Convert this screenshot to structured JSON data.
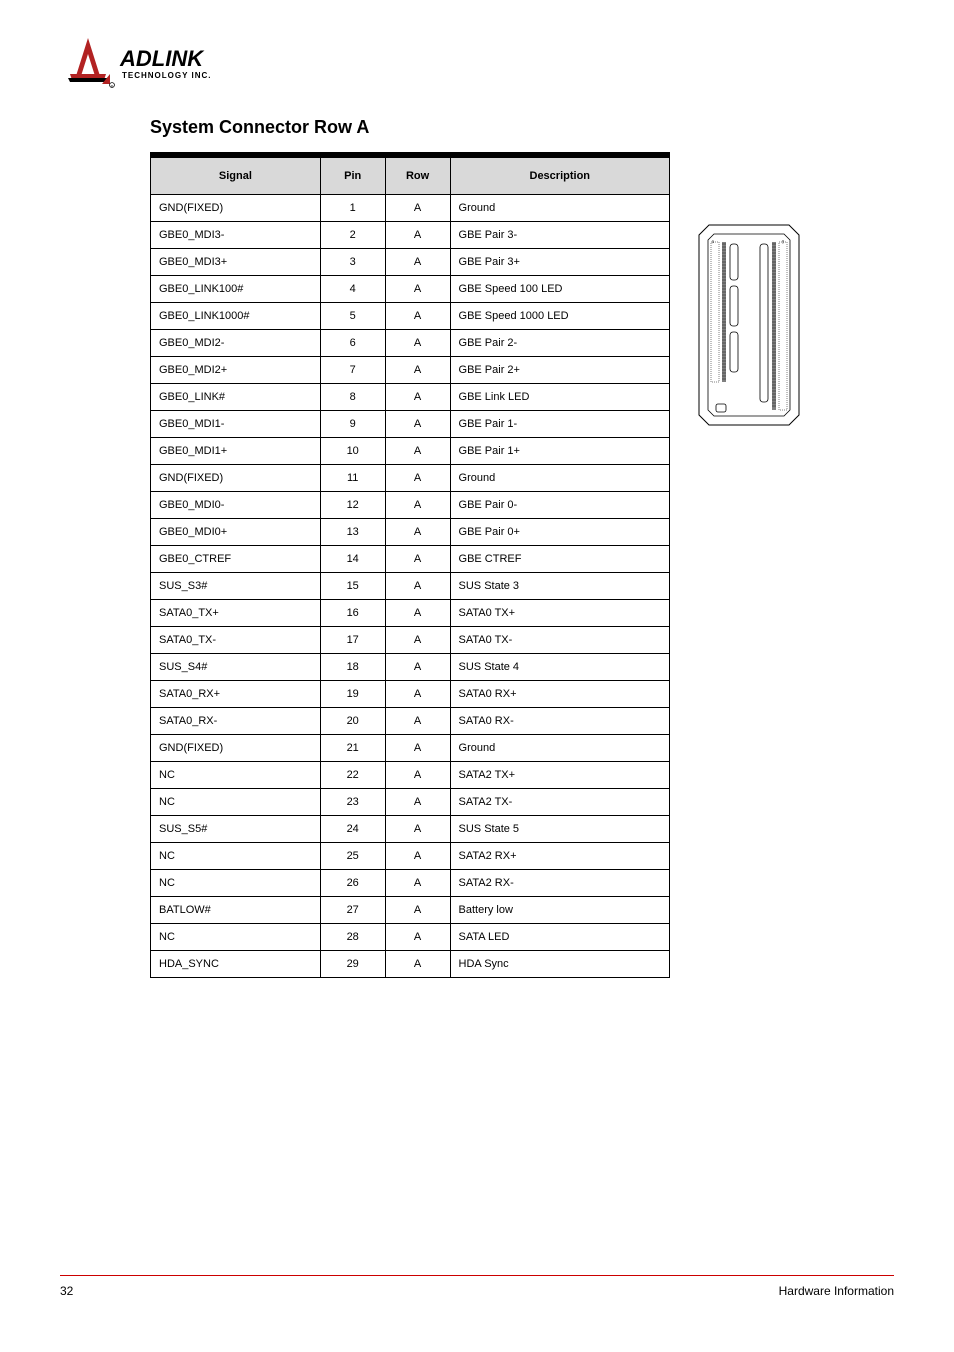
{
  "logo": {
    "brand_name": "ADLINK",
    "tagline": "TECHNOLOGY INC.",
    "primary_color": "#b22222",
    "text_color": "#000000"
  },
  "section": {
    "title": "System Connector Row A"
  },
  "table": {
    "headers": {
      "signal": "Signal",
      "pin": "Pin",
      "row": "Row",
      "description": "Description"
    },
    "rows": [
      {
        "signal": "GND(FIXED)",
        "pin": "1",
        "row": "A",
        "desc": "Ground"
      },
      {
        "signal": "GBE0_MDI3-",
        "pin": "2",
        "row": "A",
        "desc": "GBE Pair 3-"
      },
      {
        "signal": "GBE0_MDI3+",
        "pin": "3",
        "row": "A",
        "desc": "GBE Pair 3+"
      },
      {
        "signal": "GBE0_LINK100#",
        "pin": "4",
        "row": "A",
        "desc": "GBE Speed 100 LED"
      },
      {
        "signal": "GBE0_LINK1000#",
        "pin": "5",
        "row": "A",
        "desc": "GBE Speed 1000 LED"
      },
      {
        "signal": "GBE0_MDI2-",
        "pin": "6",
        "row": "A",
        "desc": "GBE Pair 2-"
      },
      {
        "signal": "GBE0_MDI2+",
        "pin": "7",
        "row": "A",
        "desc": "GBE Pair 2+"
      },
      {
        "signal": "GBE0_LINK#",
        "pin": "8",
        "row": "A",
        "desc": "GBE Link LED"
      },
      {
        "signal": "GBE0_MDI1-",
        "pin": "9",
        "row": "A",
        "desc": "GBE Pair 1-"
      },
      {
        "signal": "GBE0_MDI1+",
        "pin": "10",
        "row": "A",
        "desc": "GBE Pair 1+"
      },
      {
        "signal": "GND(FIXED)",
        "pin": "11",
        "row": "A",
        "desc": "Ground"
      },
      {
        "signal": "GBE0_MDI0-",
        "pin": "12",
        "row": "A",
        "desc": "GBE Pair 0-"
      },
      {
        "signal": "GBE0_MDI0+",
        "pin": "13",
        "row": "A",
        "desc": "GBE Pair 0+"
      },
      {
        "signal": "GBE0_CTREF",
        "pin": "14",
        "row": "A",
        "desc": "GBE CTREF"
      },
      {
        "signal": "SUS_S3#",
        "pin": "15",
        "row": "A",
        "desc": "SUS State 3"
      },
      {
        "signal": "SATA0_TX+",
        "pin": "16",
        "row": "A",
        "desc": "SATA0 TX+"
      },
      {
        "signal": "SATA0_TX-",
        "pin": "17",
        "row": "A",
        "desc": "SATA0 TX-"
      },
      {
        "signal": "SUS_S4#",
        "pin": "18",
        "row": "A",
        "desc": "SUS State 4"
      },
      {
        "signal": "SATA0_RX+",
        "pin": "19",
        "row": "A",
        "desc": "SATA0 RX+"
      },
      {
        "signal": "SATA0_RX-",
        "pin": "20",
        "row": "A",
        "desc": "SATA0 RX-"
      },
      {
        "signal": "GND(FIXED)",
        "pin": "21",
        "row": "A",
        "desc": "Ground"
      },
      {
        "signal": "NC",
        "pin": "22",
        "row": "A",
        "desc": "SATA2 TX+"
      },
      {
        "signal": "NC",
        "pin": "23",
        "row": "A",
        "desc": "SATA2 TX-"
      },
      {
        "signal": "SUS_S5#",
        "pin": "24",
        "row": "A",
        "desc": "SUS State 5"
      },
      {
        "signal": "NC",
        "pin": "25",
        "row": "A",
        "desc": "SATA2 RX+"
      },
      {
        "signal": "NC",
        "pin": "26",
        "row": "A",
        "desc": "SATA2 RX-"
      },
      {
        "signal": "BATLOW#",
        "pin": "27",
        "row": "A",
        "desc": "Battery low"
      },
      {
        "signal": "NC",
        "pin": "28",
        "row": "A",
        "desc": "SATA LED"
      },
      {
        "signal": "HDA_SYNC",
        "pin": "29",
        "row": "A",
        "desc": "HDA Sync"
      }
    ]
  },
  "diagram": {
    "bg_color": "#ffffff",
    "outline_color": "#000000",
    "fill_light": "#d9d9d9",
    "fill_dark": "#808080"
  },
  "footer": {
    "page_number": "32",
    "title": "Hardware Information",
    "border_color": "#cc0000"
  }
}
